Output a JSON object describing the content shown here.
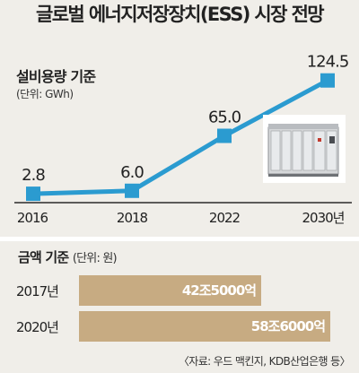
{
  "title": "글로벌 에너지저장장치(ESS) 시장 전망",
  "chart_data": [
    {
      "type": "line",
      "title": "설비용량 기준",
      "unit_label": "(단위: GWh)",
      "categories": [
        "2016",
        "2018",
        "2022",
        "2030년"
      ],
      "values": [
        2.8,
        6.0,
        65.0,
        124.5
      ],
      "value_labels": [
        "2.8",
        "6.0",
        "65.0",
        "124.5"
      ],
      "ylim": [
        0,
        130
      ],
      "grid": false,
      "color": "#2b9bd0"
    },
    {
      "type": "bar",
      "orientation": "horizontal",
      "title": "금액 기준",
      "unit_label": "(단위: 원)",
      "categories": [
        "2017년",
        "2020년"
      ],
      "values": [
        42.5,
        58.6
      ],
      "value_labels": [
        "42조5000억",
        "58조6000억"
      ],
      "value_unit": "조 원",
      "color": "#c7ab82"
    }
  ],
  "source": "〈자료: 우드 맥킨지, KDB산업은행 등〉",
  "image_icon": "ess-cabinet-photo"
}
